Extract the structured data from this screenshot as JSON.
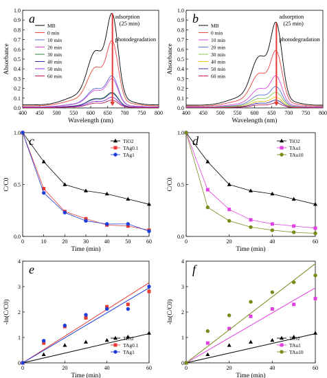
{
  "chart_data": [
    {
      "panel": "a",
      "type": "line",
      "xlabel": "Wavelength (nm)",
      "ylabel": "Absorbance",
      "xlim": [
        400,
        800
      ],
      "ylim": [
        0,
        1.0
      ],
      "xticks": [
        400,
        450,
        500,
        550,
        600,
        650,
        700,
        750,
        800
      ],
      "yticks": [
        0.0,
        0.1,
        0.2,
        0.3,
        0.4,
        0.5,
        0.6,
        0.7,
        0.8,
        0.9,
        1.0
      ],
      "legend": "top-left",
      "annotations": [
        "adsorption",
        "(25 min)",
        "photodegradation"
      ],
      "arrow": {
        "x": 664,
        "y_from": 0.97,
        "y_to": 0.02
      },
      "peak_scale": [
        {
          "name": "MB",
          "color": "#000000",
          "value": 0.97
        },
        {
          "name": "0 min",
          "color": "#e8443a",
          "value": 0.69
        },
        {
          "name": "10 min",
          "color": "#5a6fd8",
          "value": 0.33
        },
        {
          "name": "20 min",
          "color": "#d84ad8",
          "value": 0.3
        },
        {
          "name": "30 min",
          "color": "#2e7d32",
          "value": 0.16
        },
        {
          "name": "40 min",
          "color": "#2c2ca8",
          "value": 0.15
        },
        {
          "name": "50 min",
          "color": "#8a2be2",
          "value": 0.11
        },
        {
          "name": "60 min",
          "color": "#c2185b",
          "value": 0.08
        }
      ]
    },
    {
      "panel": "b",
      "type": "line",
      "xlabel": "Wavelength (nm)",
      "ylabel": "Absorbance",
      "xlim": [
        400,
        800
      ],
      "ylim": [
        0,
        1.0
      ],
      "xticks": [
        400,
        450,
        500,
        550,
        600,
        650,
        700,
        750,
        800
      ],
      "yticks": [
        0.0,
        0.1,
        0.2,
        0.3,
        0.4,
        0.5,
        0.6,
        0.7,
        0.8,
        0.9,
        1.0
      ],
      "legend": "top-left",
      "annotations": [
        "adsorption",
        "(25 min)",
        "photodegradation"
      ],
      "arrow": {
        "x": 664,
        "y_from": 0.87,
        "y_to": 0.02
      },
      "peak_scale": [
        {
          "name": "MB",
          "color": "#000000",
          "value": 0.88
        },
        {
          "name": "0 min",
          "color": "#e8443a",
          "value": 0.59
        },
        {
          "name": "10 min",
          "color": "#d84ad8",
          "value": 0.33
        },
        {
          "name": "20 min",
          "color": "#5a6fd8",
          "value": 0.22
        },
        {
          "name": "30 min",
          "color": "#8bc34a",
          "value": 0.16
        },
        {
          "name": "40 min",
          "color": "#f0c419",
          "value": 0.11
        },
        {
          "name": "50 min",
          "color": "#2c2ca8",
          "value": 0.08
        },
        {
          "name": "60 min",
          "color": "#c2185b",
          "value": 0.05
        }
      ]
    },
    {
      "panel": "c",
      "type": "line",
      "xlabel": "Time (min)",
      "ylabel": "C/C0",
      "xlim": [
        0,
        60
      ],
      "ylim": [
        0,
        1.0
      ],
      "xticks": [
        0,
        10,
        20,
        30,
        40,
        50,
        60
      ],
      "yticks": [
        0.0,
        0.5,
        1.0
      ],
      "legend": "top-right",
      "x": [
        0,
        10,
        20,
        30,
        40,
        50,
        60
      ],
      "series": [
        {
          "name": "TiO2",
          "color": "#000000",
          "marker": "triangle",
          "values": [
            1.0,
            0.72,
            0.5,
            0.44,
            0.41,
            0.36,
            0.31
          ]
        },
        {
          "name": "TAg0.1",
          "color": "#e53935",
          "marker": "square",
          "values": [
            1.0,
            0.46,
            0.24,
            0.17,
            0.11,
            0.1,
            0.06
          ]
        },
        {
          "name": "TAg1",
          "color": "#1e3fd8",
          "marker": "circle",
          "values": [
            1.0,
            0.42,
            0.23,
            0.15,
            0.12,
            0.12,
            0.05
          ]
        }
      ]
    },
    {
      "panel": "d",
      "type": "line",
      "xlabel": "Time (min)",
      "ylabel": "C/C0",
      "xlim": [
        0,
        60
      ],
      "ylim": [
        0,
        1.0
      ],
      "xticks": [
        0,
        20,
        40,
        60
      ],
      "yticks": [
        0.0,
        0.5,
        1.0
      ],
      "legend": "top-right",
      "x": [
        0,
        10,
        20,
        30,
        40,
        50,
        60
      ],
      "series": [
        {
          "name": "TiO2",
          "color": "#000000",
          "marker": "triangle",
          "values": [
            1.0,
            0.72,
            0.5,
            0.44,
            0.41,
            0.36,
            0.31
          ]
        },
        {
          "name": "TAu1",
          "color": "#e040e0",
          "marker": "square",
          "values": [
            1.0,
            0.45,
            0.26,
            0.16,
            0.12,
            0.1,
            0.08
          ]
        },
        {
          "name": "TAu10",
          "color": "#7a8a1a",
          "marker": "circle",
          "values": [
            1.0,
            0.28,
            0.15,
            0.09,
            0.06,
            0.04,
            0.03
          ]
        }
      ]
    },
    {
      "panel": "e",
      "type": "scatter",
      "xlabel": "Time (min)",
      "ylabel": "-ln(C/C0)",
      "xlim": [
        0,
        60
      ],
      "ylim": [
        0,
        4
      ],
      "xticks": [
        0,
        20,
        40,
        60
      ],
      "yticks": [
        0,
        1,
        2,
        3,
        4
      ],
      "legend": "bottom-right",
      "x": [
        0,
        10,
        20,
        30,
        40,
        50,
        60
      ],
      "series": [
        {
          "name": "TiO2",
          "color": "#000000",
          "marker": "triangle",
          "values": [
            0,
            0.33,
            0.69,
            0.82,
            0.89,
            1.02,
            1.17
          ],
          "fit": [
            0,
            1.15
          ]
        },
        {
          "name": "TAg0.1",
          "color": "#e53935",
          "marker": "square",
          "values": [
            0,
            0.78,
            1.43,
            1.77,
            2.21,
            2.3,
            2.81
          ],
          "fit": [
            0,
            3.15
          ]
        },
        {
          "name": "TAg1",
          "color": "#1e3fd8",
          "marker": "circle",
          "values": [
            0,
            0.87,
            1.47,
            1.89,
            2.12,
            2.12,
            3.0
          ],
          "fit": [
            0,
            2.95
          ]
        }
      ]
    },
    {
      "panel": "f",
      "type": "scatter",
      "xlabel": "Time (min)",
      "ylabel": "-ln(C/C0)",
      "xlim": [
        0,
        60
      ],
      "ylim": [
        0,
        4
      ],
      "xticks": [
        0,
        20,
        40,
        60
      ],
      "yticks": [
        0,
        1,
        2,
        3,
        4
      ],
      "legend": "bottom-right",
      "x": [
        0,
        10,
        20,
        30,
        40,
        50,
        60
      ],
      "series": [
        {
          "name": "TiO2",
          "color": "#000000",
          "marker": "triangle",
          "values": [
            0,
            0.33,
            0.69,
            0.82,
            0.89,
            1.02,
            1.17
          ],
          "fit": [
            0,
            1.15
          ]
        },
        {
          "name": "TAu1",
          "color": "#e040e0",
          "marker": "square",
          "values": [
            0,
            0.78,
            1.35,
            1.83,
            2.12,
            2.3,
            2.53
          ],
          "fit": [
            0,
            2.95
          ]
        },
        {
          "name": "TAu10",
          "color": "#7a8a1a",
          "marker": "circle",
          "values": [
            0,
            1.25,
            1.87,
            2.4,
            2.78,
            3.17,
            3.44
          ],
          "fit": [
            0,
            3.9
          ]
        }
      ]
    }
  ]
}
